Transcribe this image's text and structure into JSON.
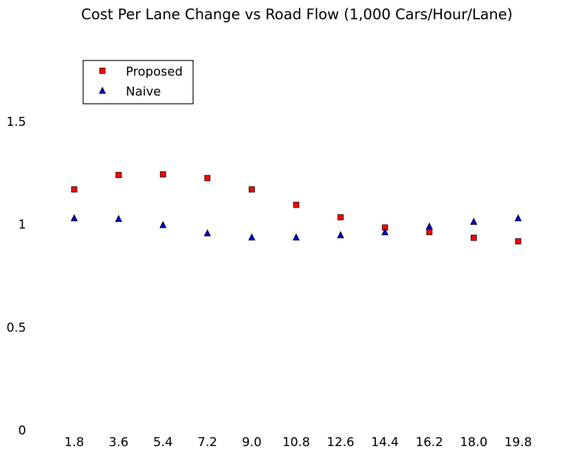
{
  "chart_data": {
    "type": "scatter",
    "title": "Cost Per Lane Change vs Road Flow (1,000 Cars/Hour/Lane)",
    "xlabel": "",
    "ylabel": "",
    "categories": [
      "1.8",
      "3.6",
      "5.4",
      "7.2",
      "9.0",
      "10.8",
      "12.6",
      "14.4",
      "16.2",
      "18.0",
      "19.8"
    ],
    "y_ticks": [
      "0",
      "0.5",
      "1",
      "1.5"
    ],
    "y_tick_values": [
      0,
      0.5,
      1,
      1.5
    ],
    "ylim": [
      0,
      2.0
    ],
    "grid": false,
    "legend_position": "top-left",
    "series": [
      {
        "name": "Proposed",
        "marker": "square",
        "color": "#ff0000",
        "values": [
          1.17,
          1.24,
          1.243,
          1.225,
          1.17,
          1.095,
          1.035,
          0.985,
          0.963,
          0.935,
          0.918
        ]
      },
      {
        "name": "Naive",
        "marker": "triangle",
        "color": "#0000cc",
        "values": [
          1.03,
          1.027,
          0.997,
          0.957,
          0.937,
          0.937,
          0.948,
          0.962,
          0.99,
          1.013,
          1.03
        ]
      }
    ]
  }
}
